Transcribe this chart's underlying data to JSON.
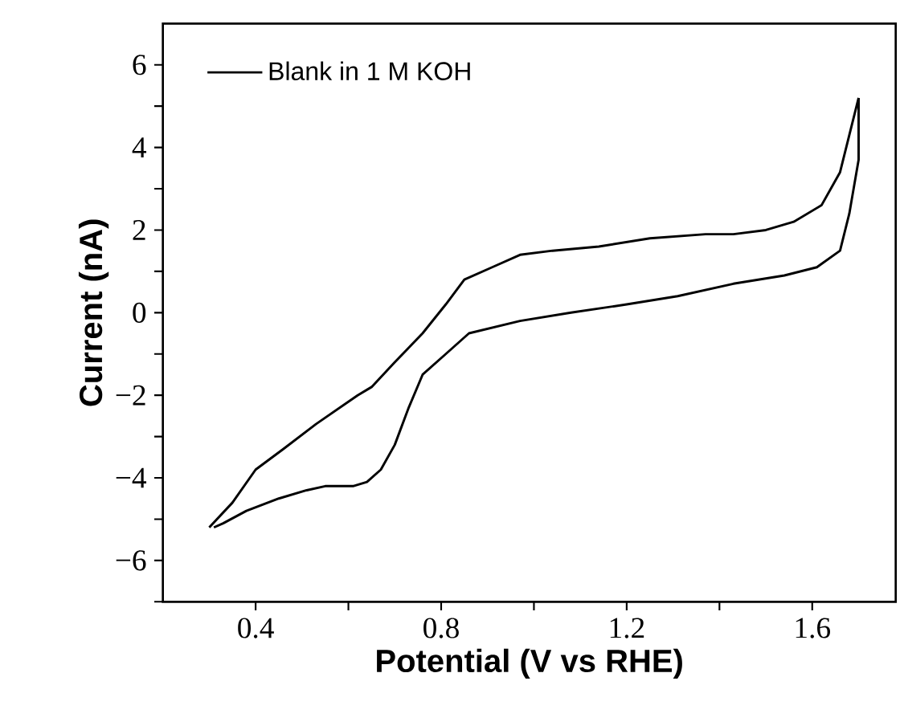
{
  "chart_data": {
    "type": "line",
    "xlabel": "Potential (V vs RHE)",
    "ylabel": "Current (nA)",
    "xlim": [
      0.2,
      1.78
    ],
    "ylim": [
      -7,
      7
    ],
    "xticks": [
      0.4,
      {
        "value": 0.6,
        "label": null
      },
      0.8,
      {
        "value": 1.0,
        "label": null
      },
      1.2,
      {
        "value": 1.4,
        "label": null
      },
      1.6
    ],
    "yticks": [
      {
        "value": -7,
        "label": null
      },
      {
        "value": -6,
        "label": "−6"
      },
      {
        "value": -5,
        "label": null
      },
      {
        "value": -4,
        "label": "−4"
      },
      {
        "value": -3,
        "label": null
      },
      {
        "value": -2,
        "label": "−2"
      },
      {
        "value": -1,
        "label": null
      },
      0,
      {
        "value": 1,
        "label": null
      },
      2,
      {
        "value": 3,
        "label": null
      },
      4,
      {
        "value": 5,
        "label": null
      },
      6
    ],
    "legend": "top left",
    "series": [
      {
        "name": "Blank in 1 M KOH",
        "color": "#000000",
        "x": [
          0.3,
          0.35,
          0.4,
          0.46,
          0.53,
          0.62,
          0.65,
          0.7,
          0.76,
          0.81,
          0.85,
          0.91,
          0.97,
          1.04,
          1.14,
          1.25,
          1.37,
          1.43,
          1.5,
          1.56,
          1.62,
          1.66,
          1.68,
          1.7
        ],
        "values": [
          -5.2,
          -4.6,
          -3.8,
          -3.3,
          -2.7,
          -2.0,
          -1.8,
          -1.2,
          -0.5,
          0.2,
          0.8,
          1.1,
          1.4,
          1.5,
          1.6,
          1.8,
          1.9,
          1.9,
          2.0,
          2.2,
          2.6,
          3.4,
          4.3,
          5.2
        ]
      },
      {
        "color": "#000000",
        "x": [
          1.7,
          1.7,
          1.68,
          1.66,
          1.61,
          1.54,
          1.43,
          1.31,
          1.2,
          1.08,
          0.97,
          0.86,
          0.81,
          0.76,
          0.73,
          0.7,
          0.67,
          0.64,
          0.61,
          0.55,
          0.51,
          0.45,
          0.38,
          0.33,
          0.31
        ],
        "values": [
          5.2,
          3.7,
          2.4,
          1.5,
          1.1,
          0.9,
          0.7,
          0.4,
          0.2,
          0.0,
          -0.2,
          -0.5,
          -1.0,
          -1.5,
          -2.3,
          -3.2,
          -3.8,
          -4.1,
          -4.2,
          -4.2,
          -4.3,
          -4.5,
          -4.8,
          -5.1,
          -5.2
        ]
      }
    ]
  }
}
